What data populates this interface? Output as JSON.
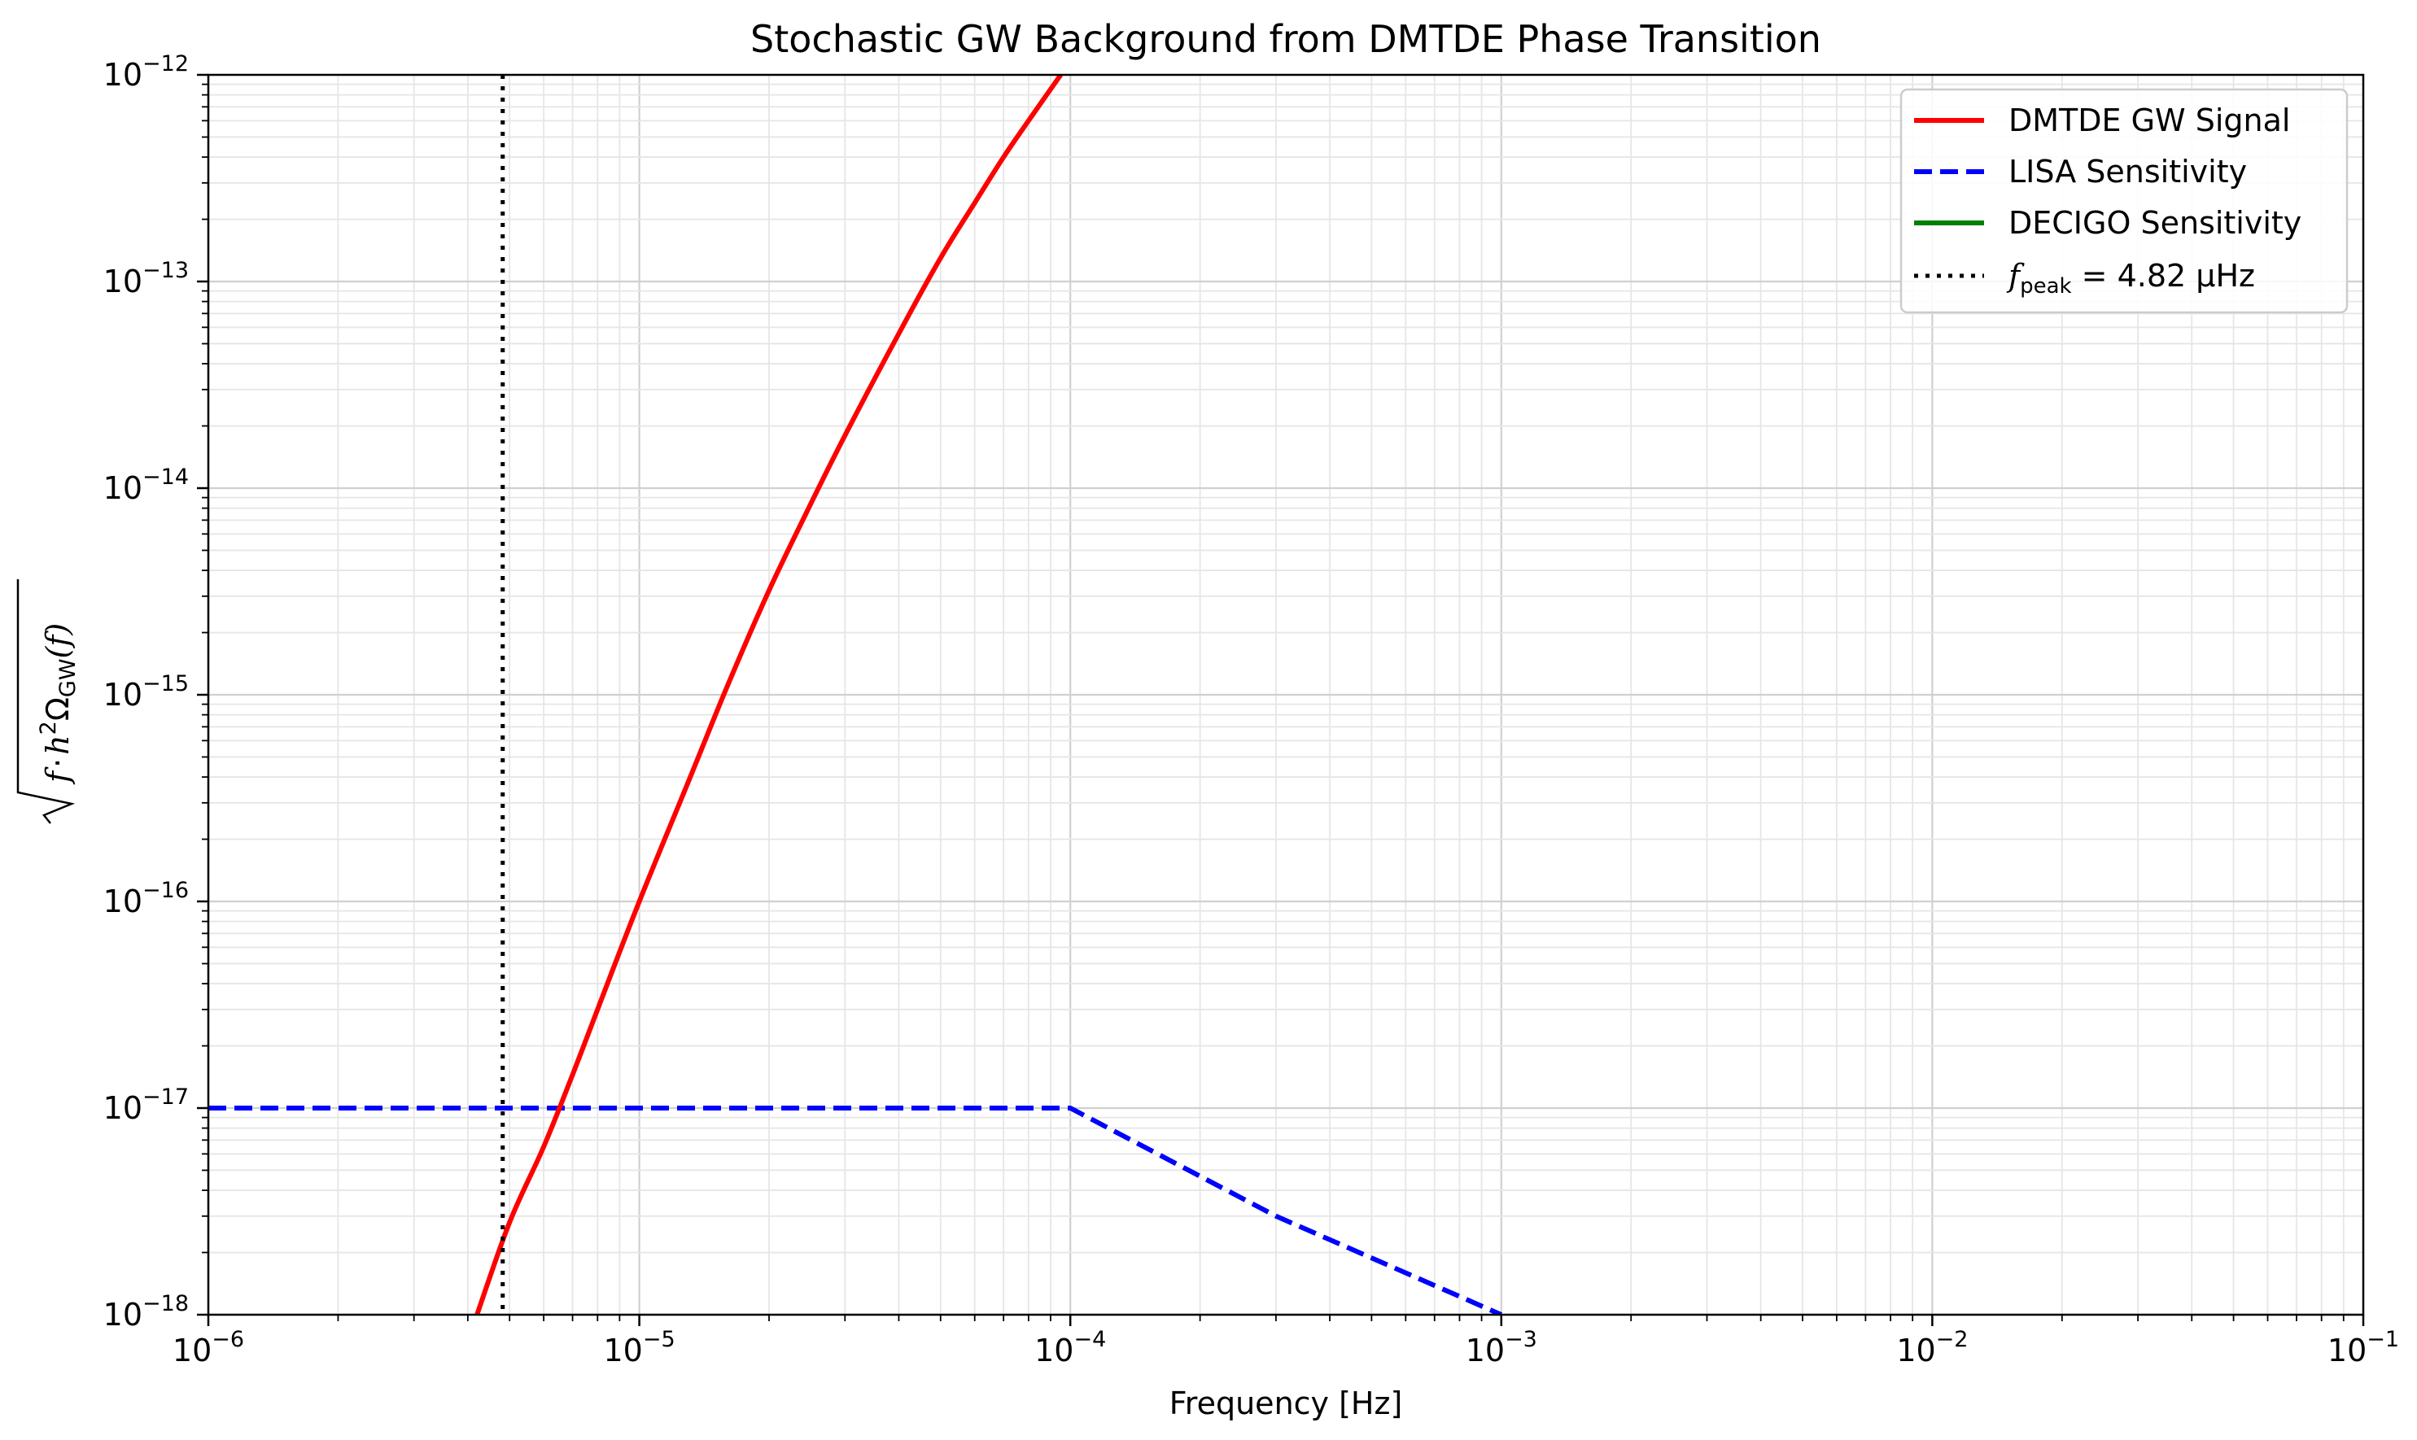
{
  "chart_data": {
    "type": "line",
    "title": "Stochastic GW Background from DMTDE Phase Transition",
    "xlabel": "Frequency [Hz]",
    "ylabel": {
      "radicand_f": "f",
      "dot": "·",
      "h": "h",
      "h_exp": "2",
      "omega": "Ω",
      "omega_sub": "GW",
      "arg": "(f)"
    },
    "x_scale": "log",
    "y_scale": "log",
    "xlim": [
      1e-06,
      0.1
    ],
    "ylim": [
      1e-18,
      1e-12
    ],
    "grid": true,
    "legend_position": "upper right",
    "x_ticks": [
      {
        "base": "10",
        "exp": "−6",
        "value": 1e-06
      },
      {
        "base": "10",
        "exp": "−5",
        "value": 1e-05
      },
      {
        "base": "10",
        "exp": "−4",
        "value": 0.0001
      },
      {
        "base": "10",
        "exp": "−3",
        "value": 0.001
      },
      {
        "base": "10",
        "exp": "−2",
        "value": 0.01
      },
      {
        "base": "10",
        "exp": "−1",
        "value": 0.1
      }
    ],
    "y_ticks": [
      {
        "base": "10",
        "exp": "−18",
        "value": 1e-18
      },
      {
        "base": "10",
        "exp": "−17",
        "value": 1e-17
      },
      {
        "base": "10",
        "exp": "−16",
        "value": 1e-16
      },
      {
        "base": "10",
        "exp": "−15",
        "value": 1e-15
      },
      {
        "base": "10",
        "exp": "−14",
        "value": 1e-14
      },
      {
        "base": "10",
        "exp": "−13",
        "value": 1e-13
      },
      {
        "base": "10",
        "exp": "−12",
        "value": 1e-12
      }
    ],
    "series": [
      {
        "name": "DMTDE GW Signal",
        "color": "#ff0000",
        "style": "solid",
        "x": [
          4.2e-06,
          5e-06,
          6e-06,
          7e-06,
          8e-06,
          1e-05,
          1.3e-05,
          1.6e-05,
          2e-05,
          2.5e-05,
          3e-05,
          4e-05,
          5e-05,
          6e-05,
          7e-05,
          8e-05,
          9.5e-05
        ],
        "y": [
          1e-18,
          2.8e-18,
          6.5e-18,
          1.45e-17,
          3e-17,
          1e-16,
          3.8e-16,
          1.1e-15,
          3.2e-15,
          8.4e-15,
          1.8e-14,
          5.6e-14,
          1.3e-13,
          2.4e-13,
          4e-13,
          6e-13,
          1e-12
        ]
      },
      {
        "name": "LISA Sensitivity",
        "color": "#0000ff",
        "style": "dashed",
        "x": [
          1e-06,
          0.0001,
          0.0003,
          0.001
        ],
        "y": [
          1e-17,
          1e-17,
          3e-18,
          1e-18
        ]
      },
      {
        "name": "DECIGO Sensitivity",
        "color": "#008000",
        "style": "solid",
        "x": [],
        "y": []
      }
    ],
    "annotations": [
      {
        "type": "vline",
        "x": 4.82e-06,
        "color": "#000000",
        "style": "dotted",
        "legend": {
          "f": "f",
          "sub": "peak",
          "rest": " = 4.82 μHz"
        }
      }
    ]
  }
}
